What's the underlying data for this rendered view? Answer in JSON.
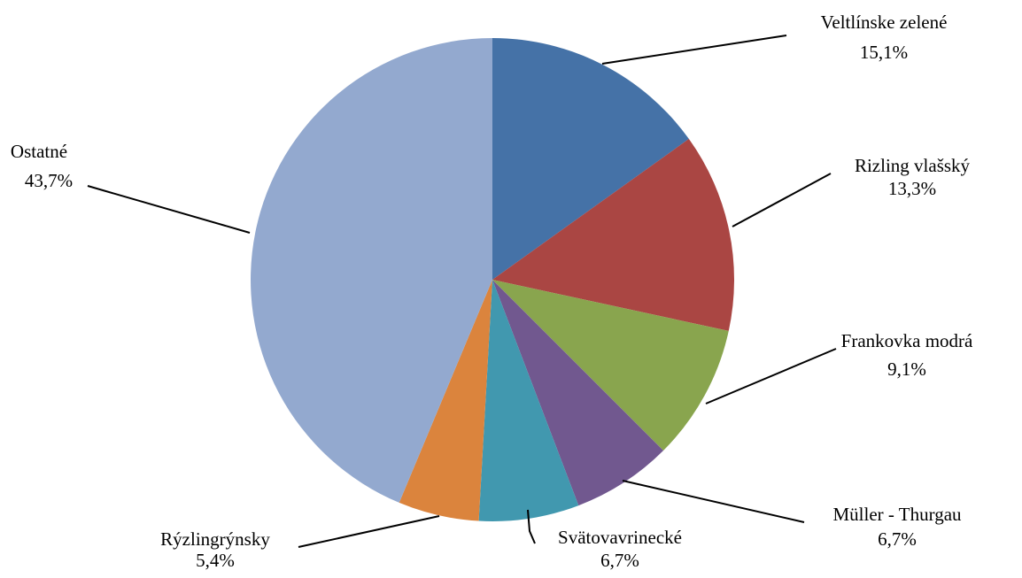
{
  "chart_data": {
    "type": "pie",
    "start_angle_deg": 0,
    "direction": "clockwise",
    "slices": [
      {
        "name": "Veltlínske zelené",
        "value": 15.1,
        "label": "15,1%",
        "color": "#4572A7"
      },
      {
        "name": "Rizling vlašský",
        "value": 13.3,
        "label": "13,3%",
        "color": "#AA4643"
      },
      {
        "name": "Frankovka modrá",
        "value": 9.1,
        "label": "9,1%",
        "color": "#89A54E"
      },
      {
        "name": "Müller - Thurgau",
        "value": 6.7,
        "label": "6,7%",
        "color": "#71588F"
      },
      {
        "name": "Svätovavrinecké",
        "value": 6.7,
        "label": "6,7%",
        "color": "#4198AF"
      },
      {
        "name": "Rýzlingrýnsky",
        "value": 5.4,
        "label": "5,4%",
        "color": "#DB843D"
      },
      {
        "name": "Ostatné",
        "value": 43.7,
        "label": "43,7%",
        "color": "#93A9CF"
      }
    ]
  }
}
